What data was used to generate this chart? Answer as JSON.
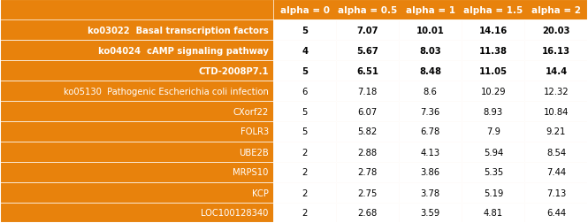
{
  "header": [
    "alpha = 0",
    "alpha = 0.5",
    "alpha = 1",
    "alpha = 1.5",
    "alpha = 2"
  ],
  "rows": [
    {
      "label": "ko03022  Basal transcription factors",
      "values": [
        5,
        7.07,
        10.01,
        14.16,
        20.03
      ],
      "bold": true
    },
    {
      "label": "ko04024  cAMP signaling pathway",
      "values": [
        4,
        5.67,
        8.03,
        11.38,
        16.13
      ],
      "bold": true
    },
    {
      "label": "CTD-2008P7.1",
      "values": [
        5,
        6.51,
        8.48,
        11.05,
        14.4
      ],
      "bold": true
    },
    {
      "label": "ko05130  Pathogenic Escherichia coli infection",
      "values": [
        6,
        7.18,
        8.6,
        10.29,
        12.32
      ],
      "bold": false
    },
    {
      "label": "CXorf22",
      "values": [
        5,
        6.07,
        7.36,
        8.93,
        10.84
      ],
      "bold": false
    },
    {
      "label": "FOLR3",
      "values": [
        5,
        5.82,
        6.78,
        7.9,
        9.21
      ],
      "bold": false
    },
    {
      "label": "UBE2B",
      "values": [
        2,
        2.88,
        4.13,
        5.94,
        8.54
      ],
      "bold": false
    },
    {
      "label": "MRPS10",
      "values": [
        2,
        2.78,
        3.86,
        5.35,
        7.44
      ],
      "bold": false
    },
    {
      "label": "KCP",
      "values": [
        2,
        2.75,
        3.78,
        5.19,
        7.13
      ],
      "bold": false
    },
    {
      "label": "LOC100128340",
      "values": [
        2,
        2.68,
        3.59,
        4.81,
        6.44
      ],
      "bold": false
    }
  ],
  "bg_color": "#E8820C",
  "header_bg": "#E8820C",
  "data_bg": "#FFFFFF",
  "text_color_label": "#FFFFFF",
  "text_color_data": "#000000",
  "text_color_header": "#FFFFFF",
  "border_color": "#FFFFFF",
  "figsize": [
    6.65,
    2.53
  ],
  "dpi": 100
}
